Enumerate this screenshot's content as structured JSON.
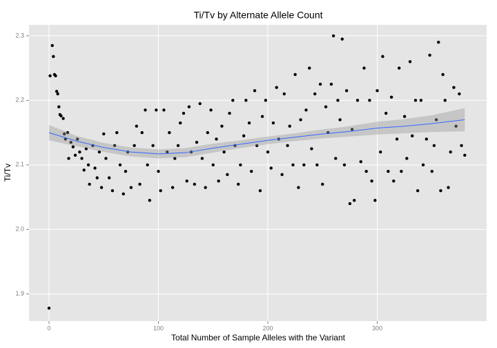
{
  "chart_data": {
    "type": "scatter",
    "title": "Ti/Tv by Alternate Allele Count",
    "x_label": "Total Number of Sample Alleles with the Variant",
    "y_label": "Ti/Tv",
    "xlim": [
      -18.3,
      400
    ],
    "ylim": [
      1.858,
      2.317
    ],
    "xticks": [
      0,
      100,
      200,
      300
    ],
    "yticks": [
      1.9,
      {
        "value": 2,
        "label": "2.0"
      },
      2.1,
      2.2,
      2.3
    ],
    "grid": true,
    "point_color": "#000000",
    "x": [
      0,
      1,
      3,
      4,
      5,
      6,
      7,
      8,
      9,
      10,
      11,
      13,
      14,
      15,
      17,
      18,
      20,
      22,
      24,
      26,
      28,
      30,
      32,
      34,
      36,
      37,
      40,
      42,
      44,
      46,
      48,
      50,
      52,
      55,
      58,
      60,
      62,
      65,
      68,
      70,
      72,
      75,
      78,
      80,
      83,
      85,
      88,
      90,
      92,
      95,
      98,
      100,
      102,
      105,
      108,
      110,
      113,
      115,
      118,
      120,
      123,
      126,
      128,
      130,
      133,
      135,
      138,
      140,
      143,
      145,
      148,
      150,
      153,
      155,
      158,
      160,
      163,
      165,
      168,
      170,
      173,
      175,
      178,
      180,
      183,
      185,
      188,
      190,
      193,
      195,
      198,
      200,
      203,
      205,
      208,
      210,
      213,
      215,
      218,
      220,
      223,
      225,
      228,
      230,
      233,
      235,
      238,
      240,
      243,
      245,
      248,
      250,
      253,
      255,
      258,
      260,
      262,
      264,
      266,
      268,
      270,
      272,
      275,
      277,
      279,
      282,
      285,
      288,
      290,
      293,
      295,
      298,
      300,
      303,
      305,
      308,
      310,
      313,
      315,
      318,
      320,
      322,
      325,
      327,
      330,
      332,
      335,
      337,
      340,
      342,
      345,
      348,
      350,
      352,
      354,
      356,
      358,
      360,
      362,
      365,
      367,
      370,
      372,
      375,
      377,
      380
    ],
    "y": [
      1.878,
      2.238,
      2.285,
      2.268,
      2.24,
      2.238,
      2.214,
      2.21,
      2.19,
      2.178,
      2.176,
      2.172,
      2.148,
      2.14,
      2.15,
      2.11,
      2.135,
      2.128,
      2.115,
      2.14,
      2.12,
      2.11,
      2.092,
      2.125,
      2.1,
      2.07,
      2.13,
      2.095,
      2.08,
      2.12,
      2.065,
      2.148,
      2.11,
      2.08,
      2.06,
      2.13,
      2.15,
      2.1,
      2.055,
      2.09,
      2.12,
      2.065,
      2.13,
      2.16,
      2.07,
      2.15,
      2.185,
      2.1,
      2.045,
      2.13,
      2.185,
      2.09,
      2.06,
      2.185,
      2.12,
      2.15,
      2.065,
      2.11,
      2.13,
      2.165,
      2.18,
      2.075,
      2.19,
      2.12,
      2.07,
      2.135,
      2.195,
      2.11,
      2.065,
      2.15,
      2.185,
      2.1,
      2.14,
      2.075,
      2.16,
      2.12,
      2.085,
      2.18,
      2.2,
      2.13,
      2.07,
      2.1,
      2.145,
      2.2,
      2.165,
      2.09,
      2.215,
      2.13,
      2.06,
      2.175,
      2.2,
      2.12,
      2.095,
      2.165,
      2.22,
      2.14,
      2.085,
      2.21,
      2.13,
      2.16,
      2.1,
      2.24,
      2.065,
      2.17,
      2.1,
      2.185,
      2.25,
      2.125,
      2.21,
      2.1,
      2.225,
      2.07,
      2.19,
      2.15,
      2.225,
      2.3,
      2.11,
      2.2,
      2.17,
      2.295,
      2.1,
      2.215,
      2.04,
      2.155,
      2.045,
      2.2,
      2.105,
      2.25,
      2.09,
      2.2,
      2.075,
      2.045,
      2.215,
      2.12,
      2.268,
      2.18,
      2.09,
      2.205,
      2.075,
      2.14,
      2.25,
      2.09,
      2.175,
      2.11,
      2.26,
      2.145,
      2.2,
      2.06,
      2.2,
      2.1,
      2.14,
      2.27,
      2.09,
      2.13,
      2.17,
      2.29,
      2.06,
      2.24,
      2.2,
      2.065,
      2.12,
      2.22,
      2.16,
      2.21,
      2.13,
      2.115
    ],
    "smooth": {
      "color": "#3366ff",
      "band_color": "#999999",
      "x": [
        0,
        25,
        50,
        75,
        100,
        125,
        150,
        175,
        200,
        225,
        250,
        275,
        300,
        325,
        350,
        380
      ],
      "y": [
        2.15,
        2.137,
        2.127,
        2.12,
        2.117,
        2.119,
        2.126,
        2.132,
        2.138,
        2.143,
        2.148,
        2.152,
        2.157,
        2.16,
        2.164,
        2.17
      ],
      "lower": [
        2.138,
        2.129,
        2.12,
        2.113,
        2.11,
        2.112,
        2.119,
        2.126,
        2.132,
        2.137,
        2.141,
        2.144,
        2.147,
        2.149,
        2.151,
        2.152
      ],
      "upper": [
        2.162,
        2.145,
        2.134,
        2.127,
        2.124,
        2.126,
        2.133,
        2.138,
        2.144,
        2.149,
        2.155,
        2.16,
        2.167,
        2.171,
        2.177,
        2.188
      ]
    }
  }
}
